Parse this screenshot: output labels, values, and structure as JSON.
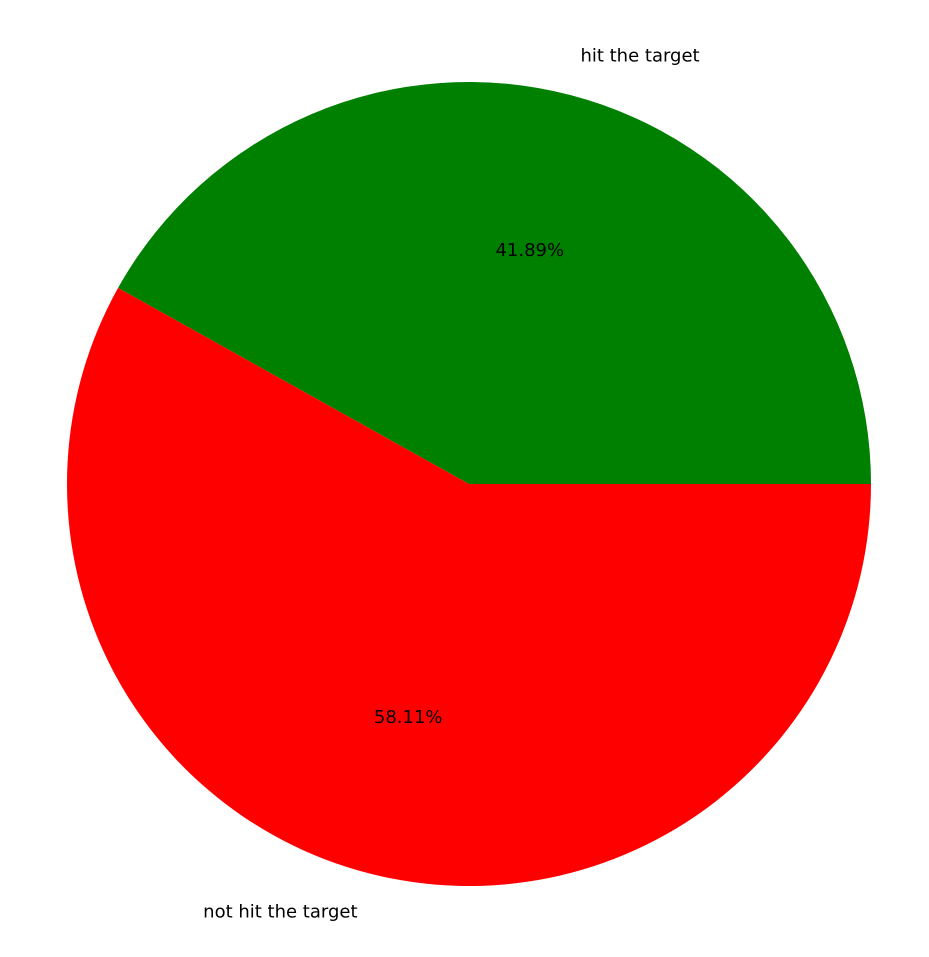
{
  "chart_data": {
    "type": "pie",
    "title": "",
    "labels": [
      "hit the target",
      "not hit the target"
    ],
    "values": [
      41.89,
      58.11
    ],
    "percent_labels": [
      "41.89%",
      "58.11%"
    ],
    "colors": [
      "#008000",
      "#ff0000"
    ],
    "start_angle_deg": 0,
    "direction": "counterclockwise"
  }
}
